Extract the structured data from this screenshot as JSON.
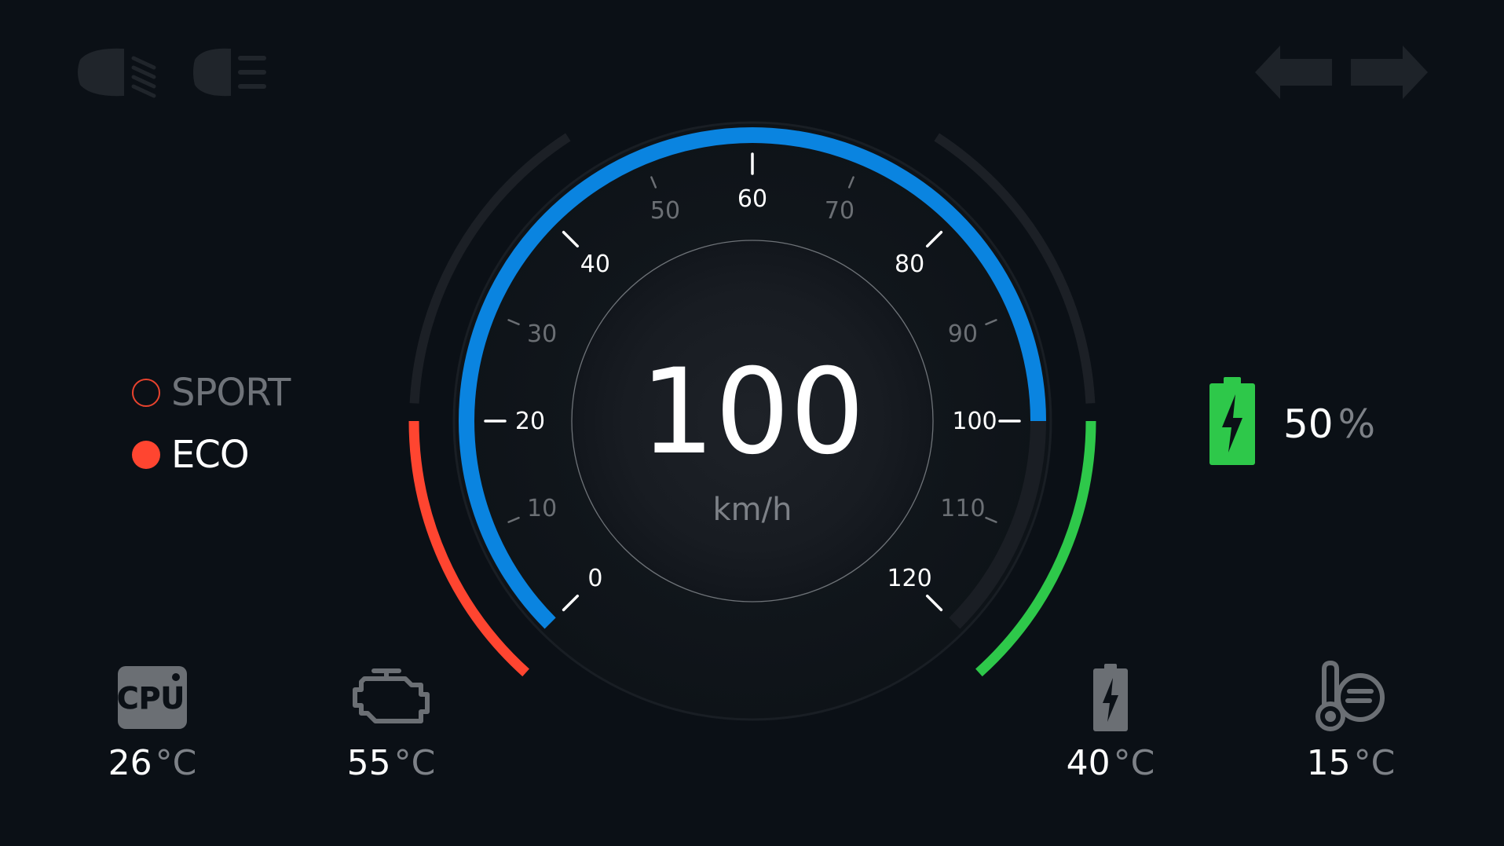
{
  "speedometer": {
    "speed": "100",
    "unit": "km/h",
    "value": 100,
    "max": 120,
    "major_ticks": [
      "0",
      "20",
      "40",
      "60",
      "80",
      "100",
      "120"
    ],
    "minor_ticks": [
      "10",
      "30",
      "50",
      "70",
      "90",
      "110"
    ],
    "colors": {
      "progress": "#0a84e0",
      "left_band": "#ff4530",
      "right_band": "#2ec84a",
      "track": "#1c2026"
    }
  },
  "top_indicators": {
    "left": [
      "low-beam-headlight-icon",
      "high-beam-headlight-icon"
    ],
    "right": [
      "left-turn-signal-icon",
      "right-turn-signal-icon"
    ]
  },
  "drive_modes": {
    "sport": "SPORT",
    "eco": "ECO",
    "active": "ECO"
  },
  "battery_level": {
    "value": "50",
    "unit": "%",
    "color": "#2ec84a"
  },
  "stats": {
    "cpu": {
      "icon": "cpu-icon",
      "label": "CPU",
      "value": "26",
      "unit": "°C"
    },
    "engine": {
      "icon": "engine-icon",
      "value": "55",
      "unit": "°C"
    },
    "battery": {
      "icon": "battery-icon",
      "value": "40",
      "unit": "°C"
    },
    "ambient": {
      "icon": "thermometer-icon",
      "value": "15",
      "unit": "°C"
    }
  }
}
